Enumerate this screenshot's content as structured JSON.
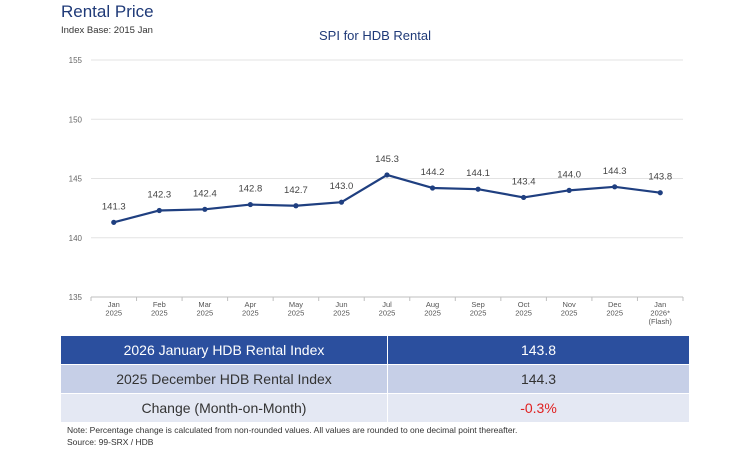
{
  "header": {
    "title": "Rental Price",
    "index_base": "Index Base: 2015 Jan"
  },
  "chart_data": {
    "type": "line",
    "title": "SPI for HDB Rental",
    "ylim": [
      135,
      155
    ],
    "yticks": [
      135,
      140,
      145,
      150,
      155
    ],
    "grid": true,
    "categories": [
      [
        "Jan",
        "2025"
      ],
      [
        "Feb",
        "2025"
      ],
      [
        "Mar",
        "2025"
      ],
      [
        "Apr",
        "2025"
      ],
      [
        "May",
        "2025"
      ],
      [
        "Jun",
        "2025"
      ],
      [
        "Jul",
        "2025"
      ],
      [
        "Aug",
        "2025"
      ],
      [
        "Sep",
        "2025"
      ],
      [
        "Oct",
        "2025"
      ],
      [
        "Nov",
        "2025"
      ],
      [
        "Dec",
        "2025"
      ],
      [
        "Jan",
        "2026*",
        "(Flash)"
      ]
    ],
    "series": [
      {
        "values": [
          141.3,
          142.3,
          142.4,
          142.8,
          142.7,
          143.0,
          145.3,
          144.2,
          144.1,
          143.4,
          144.0,
          144.3,
          143.8
        ],
        "labels": [
          "141.3",
          "142.3",
          "142.4",
          "142.8",
          "142.7",
          "143.0",
          "145.3",
          "144.2",
          "144.1",
          "143.4",
          "144.0",
          "144.3",
          "143.8"
        ],
        "color": "#1f3f80"
      }
    ]
  },
  "summary": {
    "rows": [
      {
        "label": "2026 January HDB Rental Index",
        "value": "143.8"
      },
      {
        "label": "2025 December HDB Rental Index",
        "value": "144.3"
      },
      {
        "label": "Change (Month-on-Month)",
        "value": "-0.3%"
      }
    ]
  },
  "footnote": {
    "note": "Note: Percentage change is calculated from non-rounded values.  All values are rounded to one decimal point thereafter.",
    "source": "Source: 99-SRX / HDB"
  }
}
